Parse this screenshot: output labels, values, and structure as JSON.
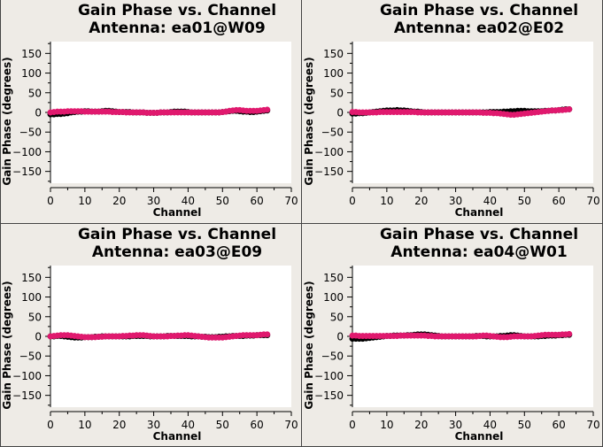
{
  "chart_data": [
    {
      "type": "scatter",
      "title": "Gain Phase vs. Channel",
      "subtitle": "Antenna: ea01@W09",
      "xlabel": "Channel",
      "ylabel": "Gain Phase (degrees)",
      "xlim": [
        0,
        70
      ],
      "ylim": [
        -180,
        180
      ],
      "xticks": [
        0,
        10,
        20,
        30,
        40,
        50,
        60,
        70
      ],
      "yticks": [
        -150,
        -100,
        -50,
        0,
        50,
        100,
        150
      ],
      "grid": false,
      "series": [
        {
          "color": "#000000",
          "values": [
            -5,
            -5,
            -4,
            -4,
            -3,
            -2,
            0,
            1,
            2,
            2,
            3,
            3,
            2,
            2,
            2,
            3,
            4,
            4,
            3,
            2,
            1,
            1,
            1,
            1,
            0,
            0,
            0,
            0,
            -1,
            -1,
            -1,
            -1,
            0,
            0,
            0,
            1,
            2,
            2,
            2,
            2,
            1,
            0,
            0,
            0,
            0,
            0,
            0,
            0,
            0,
            0,
            1,
            2,
            3,
            4,
            4,
            3,
            2,
            2,
            1,
            1,
            2,
            3,
            4,
            5
          ]
        },
        {
          "color": "#e0196e",
          "values": [
            0,
            1,
            2,
            2,
            2,
            3,
            3,
            3,
            3,
            3,
            2,
            2,
            2,
            2,
            2,
            2,
            2,
            2,
            1,
            1,
            1,
            1,
            0,
            0,
            0,
            0,
            0,
            0,
            -1,
            -1,
            -1,
            -1,
            0,
            0,
            0,
            0,
            0,
            0,
            0,
            0,
            0,
            0,
            0,
            0,
            0,
            0,
            0,
            0,
            0,
            0,
            1,
            2,
            4,
            5,
            6,
            6,
            5,
            4,
            4,
            4,
            4,
            5,
            6,
            7
          ]
        }
      ]
    },
    {
      "type": "scatter",
      "title": "Gain Phase vs. Channel",
      "subtitle": "Antenna: ea02@E02",
      "xlabel": "Channel",
      "ylabel": "Gain Phase (degrees)",
      "xlim": [
        0,
        70
      ],
      "ylim": [
        -180,
        180
      ],
      "xticks": [
        0,
        10,
        20,
        30,
        40,
        50,
        60,
        70
      ],
      "yticks": [
        -150,
        -100,
        -50,
        0,
        50,
        100,
        150
      ],
      "grid": false,
      "series": [
        {
          "color": "#000000",
          "values": [
            -3,
            -3,
            -2,
            -2,
            -1,
            0,
            1,
            2,
            3,
            4,
            5,
            5,
            5,
            6,
            5,
            5,
            4,
            3,
            2,
            2,
            1,
            0,
            0,
            0,
            0,
            0,
            0,
            0,
            0,
            0,
            0,
            0,
            0,
            0,
            0,
            0,
            0,
            0,
            0,
            0,
            1,
            1,
            1,
            1,
            2,
            2,
            3,
            3,
            4,
            4,
            4,
            3,
            3,
            3,
            3,
            3,
            4,
            4,
            5,
            5,
            6,
            7,
            8,
            8
          ]
        },
        {
          "color": "#e0196e",
          "values": [
            1,
            1,
            0,
            0,
            0,
            0,
            0,
            0,
            1,
            1,
            1,
            1,
            1,
            1,
            1,
            1,
            1,
            1,
            1,
            0,
            0,
            0,
            0,
            0,
            0,
            0,
            0,
            0,
            0,
            0,
            0,
            0,
            0,
            0,
            0,
            0,
            0,
            0,
            -1,
            -1,
            -1,
            -2,
            -2,
            -3,
            -4,
            -5,
            -6,
            -6,
            -5,
            -4,
            -3,
            -2,
            -1,
            0,
            1,
            2,
            3,
            4,
            5,
            5,
            6,
            6,
            7,
            8
          ]
        }
      ]
    },
    {
      "type": "scatter",
      "title": "Gain Phase vs. Channel",
      "subtitle": "Antenna: ea03@E09",
      "xlabel": "Channel",
      "ylabel": "Gain Phase (degrees)",
      "xlim": [
        0,
        70
      ],
      "ylim": [
        -180,
        180
      ],
      "xticks": [
        0,
        10,
        20,
        30,
        40,
        50,
        60,
        70
      ],
      "yticks": [
        -150,
        -100,
        -50,
        0,
        50,
        100,
        150
      ],
      "grid": false,
      "series": [
        {
          "color": "#000000",
          "values": [
            0,
            0,
            1,
            1,
            0,
            -1,
            -2,
            -3,
            -3,
            -3,
            -2,
            -2,
            -2,
            -1,
            -1,
            0,
            0,
            0,
            0,
            0,
            0,
            0,
            0,
            0,
            1,
            1,
            1,
            1,
            1,
            0,
            0,
            0,
            0,
            0,
            1,
            1,
            1,
            1,
            1,
            1,
            1,
            0,
            0,
            0,
            -1,
            -1,
            -2,
            -2,
            -2,
            -1,
            -1,
            0,
            0,
            1,
            1,
            1,
            1,
            2,
            2,
            2,
            3,
            3,
            3,
            3
          ]
        },
        {
          "color": "#e0196e",
          "values": [
            0,
            1,
            2,
            3,
            3,
            3,
            2,
            1,
            0,
            -1,
            -2,
            -2,
            -2,
            -2,
            -1,
            -1,
            0,
            0,
            0,
            0,
            0,
            1,
            1,
            2,
            2,
            3,
            3,
            3,
            2,
            1,
            0,
            0,
            0,
            0,
            0,
            1,
            1,
            2,
            2,
            3,
            3,
            2,
            1,
            0,
            -1,
            -2,
            -3,
            -3,
            -3,
            -3,
            -3,
            -2,
            -1,
            0,
            1,
            2,
            3,
            3,
            3,
            3,
            3,
            4,
            5,
            5
          ]
        }
      ]
    },
    {
      "type": "scatter",
      "title": "Gain Phase vs. Channel",
      "subtitle": "Antenna: ea04@W01",
      "xlabel": "Channel",
      "ylabel": "Gain Phase (degrees)",
      "xlim": [
        0,
        70
      ],
      "ylim": [
        -180,
        180
      ],
      "xticks": [
        0,
        10,
        20,
        30,
        40,
        50,
        60,
        70
      ],
      "yticks": [
        -150,
        -100,
        -50,
        0,
        50,
        100,
        150
      ],
      "grid": false,
      "series": [
        {
          "color": "#000000",
          "values": [
            -6,
            -6,
            -6,
            -6,
            -5,
            -4,
            -3,
            -2,
            -1,
            0,
            1,
            1,
            2,
            2,
            2,
            2,
            3,
            3,
            4,
            5,
            5,
            5,
            4,
            3,
            2,
            1,
            0,
            0,
            0,
            0,
            0,
            0,
            0,
            0,
            0,
            0,
            1,
            1,
            1,
            0,
            0,
            0,
            0,
            1,
            1,
            2,
            3,
            3,
            2,
            1,
            0,
            0,
            0,
            0,
            0,
            1,
            1,
            2,
            2,
            2,
            3,
            3,
            4,
            4
          ]
        },
        {
          "color": "#e0196e",
          "values": [
            2,
            2,
            1,
            1,
            1,
            1,
            1,
            1,
            1,
            1,
            1,
            1,
            1,
            1,
            2,
            2,
            2,
            2,
            2,
            2,
            2,
            2,
            1,
            1,
            0,
            0,
            0,
            0,
            0,
            0,
            0,
            0,
            0,
            0,
            0,
            0,
            0,
            1,
            2,
            2,
            1,
            0,
            -1,
            -2,
            -2,
            -2,
            -1,
            0,
            0,
            0,
            0,
            0,
            0,
            1,
            2,
            3,
            4,
            4,
            4,
            4,
            4,
            5,
            5,
            6
          ]
        }
      ]
    }
  ]
}
